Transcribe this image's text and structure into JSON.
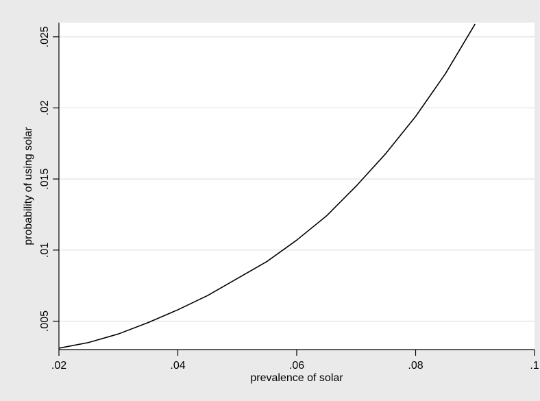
{
  "chart_data": {
    "type": "line",
    "title": "",
    "xlabel": "prevalence of solar",
    "ylabel": "probability of using solar",
    "xlim": [
      0.02,
      0.1
    ],
    "ylim": [
      0.003,
      0.026
    ],
    "x_ticks": [
      {
        "value": 0.02,
        "label": ".02"
      },
      {
        "value": 0.04,
        "label": ".04"
      },
      {
        "value": 0.06,
        "label": ".06"
      },
      {
        "value": 0.08,
        "label": ".08"
      },
      {
        "value": 0.1,
        "label": ".1"
      }
    ],
    "y_ticks": [
      {
        "value": 0.005,
        "label": ".005"
      },
      {
        "value": 0.01,
        "label": ".01"
      },
      {
        "value": 0.015,
        "label": ".015"
      },
      {
        "value": 0.02,
        "label": ".02"
      },
      {
        "value": 0.025,
        "label": ".025"
      }
    ],
    "grid": "horizontal",
    "series": [
      {
        "color": "#000000",
        "points": [
          [
            0.02,
            0.0031
          ],
          [
            0.025,
            0.0035
          ],
          [
            0.03,
            0.0041
          ],
          [
            0.035,
            0.0049
          ],
          [
            0.04,
            0.0058
          ],
          [
            0.045,
            0.0068
          ],
          [
            0.05,
            0.008
          ],
          [
            0.055,
            0.0092
          ],
          [
            0.06,
            0.0107
          ],
          [
            0.065,
            0.0124
          ],
          [
            0.07,
            0.0145
          ],
          [
            0.075,
            0.0168
          ],
          [
            0.08,
            0.0194
          ],
          [
            0.085,
            0.0224
          ],
          [
            0.09,
            0.0259
          ]
        ]
      }
    ],
    "colors": {
      "outer_background": "#eaeaea",
      "plot_background": "#ffffff",
      "gridline": "#e1e1e1",
      "axis": "#000000"
    }
  }
}
